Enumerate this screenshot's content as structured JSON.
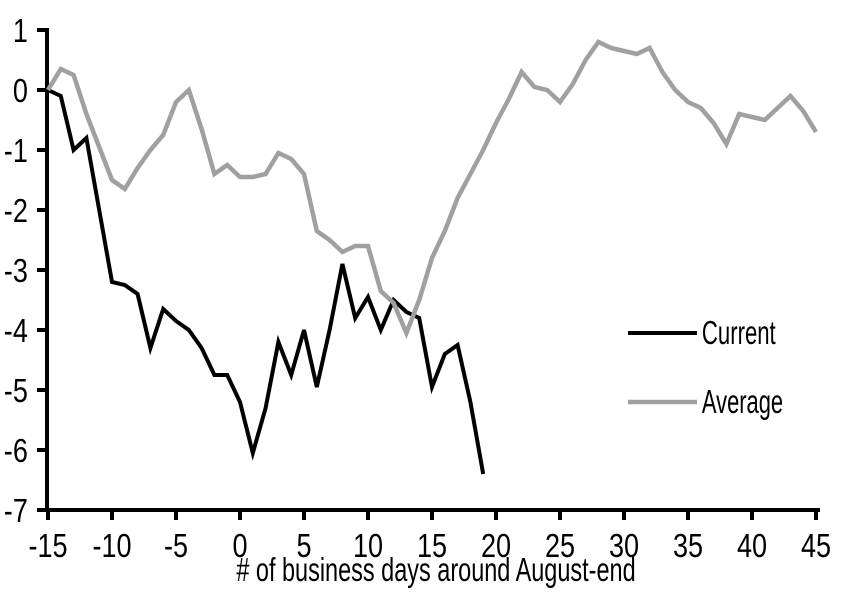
{
  "colors": {
    "background": "#ffffff",
    "axis": "#000000",
    "text": "#000000",
    "current_line": "#000000",
    "average_line": "#a0a0a0"
  },
  "chart_data": {
    "type": "line",
    "title": "",
    "xlabel": "# of business days around August-end",
    "ylabel": "",
    "xlim": [
      -15,
      45
    ],
    "ylim": [
      -7,
      1
    ],
    "xticks": [
      -15,
      -10,
      -5,
      0,
      5,
      10,
      15,
      20,
      25,
      30,
      35,
      40,
      45
    ],
    "yticks": [
      1,
      0,
      -1,
      -2,
      -3,
      -4,
      -5,
      -6,
      -7
    ],
    "grid": false,
    "legend_position": "inside-right",
    "series": [
      {
        "name": "Current",
        "color": "#000000",
        "x": [
          -15,
          -14,
          -13,
          -12,
          -11,
          -10,
          -9,
          -8,
          -7,
          -6,
          -5,
          -4,
          -3,
          -2,
          -1,
          0,
          1,
          2,
          3,
          4,
          5,
          6,
          7,
          8,
          9,
          10,
          11,
          12,
          13,
          14,
          15,
          16,
          17,
          18,
          19
        ],
        "values": [
          0,
          -0.1,
          -1.0,
          -0.8,
          -2.0,
          -3.2,
          -3.25,
          -3.4,
          -4.3,
          -3.65,
          -3.85,
          -4.0,
          -4.3,
          -4.75,
          -4.75,
          -5.2,
          -6.05,
          -5.3,
          -4.2,
          -4.75,
          -4.0,
          -4.95,
          -4.0,
          -2.9,
          -3.8,
          -3.45,
          -4.0,
          -3.5,
          -3.7,
          -3.8,
          -4.95,
          -4.4,
          -4.25,
          -5.2,
          -6.4
        ]
      },
      {
        "name": "Average",
        "color": "#a0a0a0",
        "x": [
          -15,
          -14,
          -13,
          -12,
          -11,
          -10,
          -9,
          -8,
          -7,
          -6,
          -5,
          -4,
          -3,
          -2,
          -1,
          0,
          1,
          2,
          3,
          4,
          5,
          6,
          7,
          8,
          9,
          10,
          11,
          12,
          13,
          14,
          15,
          16,
          17,
          18,
          19,
          20,
          21,
          22,
          23,
          24,
          25,
          26,
          27,
          28,
          29,
          30,
          31,
          32,
          33,
          34,
          35,
          36,
          37,
          38,
          39,
          40,
          41,
          42,
          43,
          44,
          45
        ],
        "values": [
          0,
          0.35,
          0.25,
          -0.4,
          -0.95,
          -1.5,
          -1.65,
          -1.3,
          -1.0,
          -0.75,
          -0.2,
          0.0,
          -0.65,
          -1.4,
          -1.25,
          -1.45,
          -1.45,
          -1.4,
          -1.05,
          -1.15,
          -1.4,
          -2.35,
          -2.5,
          -2.7,
          -2.6,
          -2.6,
          -3.35,
          -3.55,
          -4.05,
          -3.5,
          -2.8,
          -2.35,
          -1.8,
          -1.4,
          -1.0,
          -0.55,
          -0.15,
          0.3,
          0.05,
          0.0,
          -0.2,
          0.1,
          0.5,
          0.8,
          0.7,
          0.65,
          0.6,
          0.7,
          0.3,
          0.0,
          -0.2,
          -0.3,
          -0.55,
          -0.9,
          -0.4,
          -0.45,
          -0.5,
          -0.3,
          -0.1,
          -0.35,
          -0.7
        ]
      }
    ]
  }
}
